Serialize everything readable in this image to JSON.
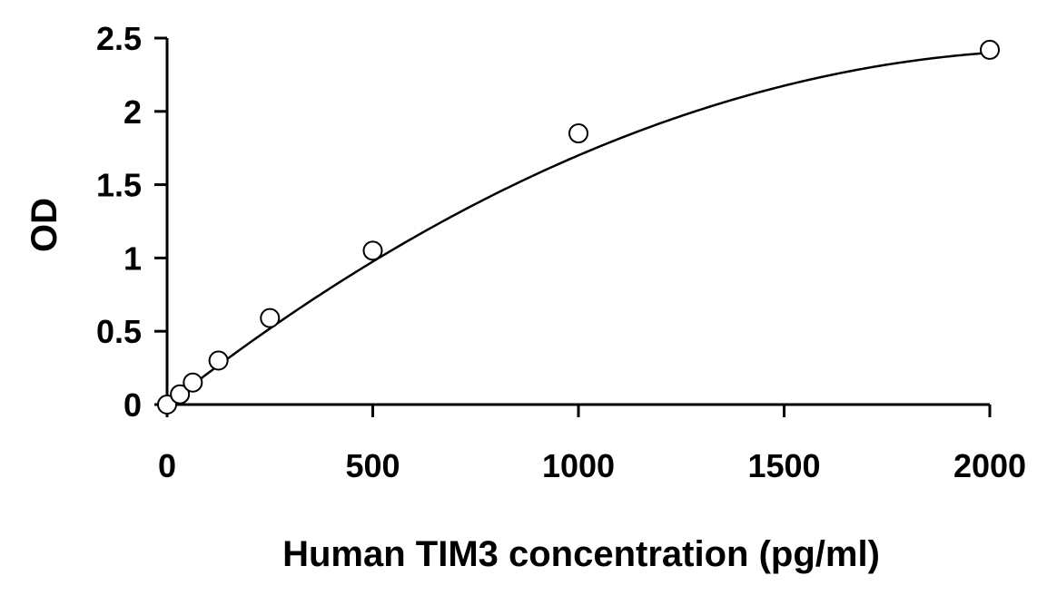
{
  "chart_data": {
    "type": "scatter",
    "title": "",
    "xlabel": "Human TIM3 concentration (pg/ml)",
    "ylabel": "OD",
    "xlim": [
      0,
      2000
    ],
    "ylim": [
      0,
      2.5
    ],
    "x_ticks": [
      0,
      500,
      1000,
      1500,
      2000
    ],
    "x_tick_labels": [
      "0",
      "500",
      "1000",
      "1500",
      "2000"
    ],
    "y_ticks": [
      0,
      0.5,
      1,
      1.5,
      2,
      2.5
    ],
    "y_tick_labels": [
      "0",
      "0.5",
      "1",
      "1.5",
      "2",
      "2.5"
    ],
    "grid": false,
    "legend": "none",
    "series": [
      {
        "marker": "open-circle",
        "x": [
          0,
          31.25,
          62.5,
          125,
          250,
          500,
          1000,
          2000
        ],
        "y": [
          0.0,
          0.07,
          0.15,
          0.3,
          0.59,
          1.05,
          1.85,
          2.42
        ]
      }
    ],
    "fit_curve": {
      "type": "polynomial",
      "coefficients": [
        0,
        0.0022,
        -5e-07
      ],
      "x_range": [
        0,
        2000
      ]
    },
    "colors": {
      "axis": "#000000",
      "marker_stroke": "#000000",
      "marker_fill": "#ffffff",
      "curve": "#000000"
    }
  }
}
